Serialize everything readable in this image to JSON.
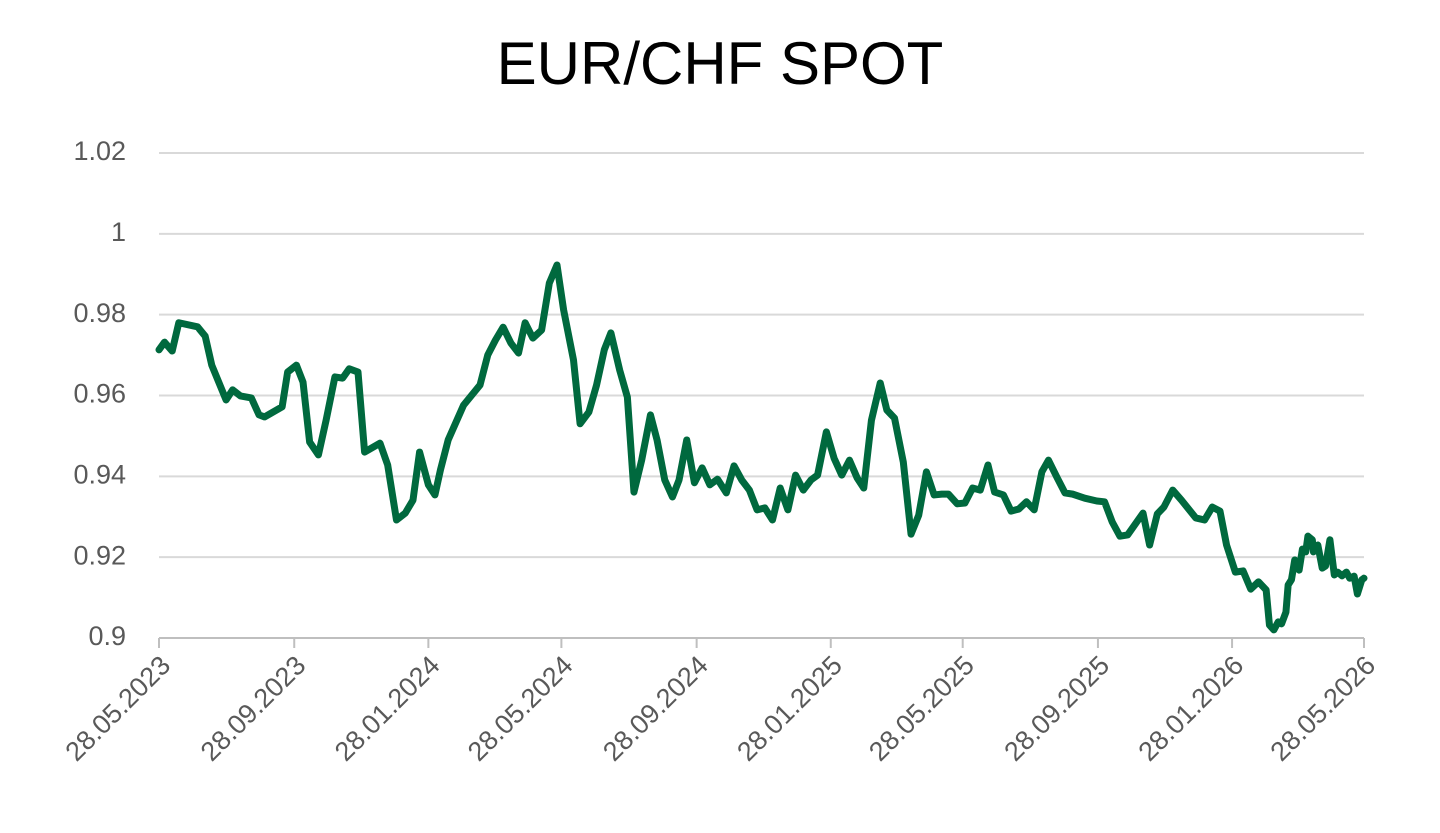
{
  "chart_data": {
    "type": "line",
    "title": "EUR/CHF SPOT",
    "x": [
      "28.05.2023",
      "02.06.2023",
      "09.06.2023",
      "15.06.2023",
      "02.07.2023",
      "09.07.2023",
      "15.07.2023",
      "28.07.2023",
      "03.08.2023",
      "10.08.2023",
      "20.08.2023",
      "27.08.2023",
      "01.09.2023",
      "17.09.2023",
      "22.09.2023",
      "30.09.2023",
      "06.10.2023",
      "12.10.2023",
      "20.10.2023",
      "27.10.2023",
      "04.11.2023",
      "11.11.2023",
      "17.11.2023",
      "25.11.2023",
      "01.12.2023",
      "15.12.2023",
      "22.12.2023",
      "30.12.2023",
      "07.01.2024",
      "14.01.2024",
      "20.01.2024",
      "28.01.2024",
      "03.02.2024",
      "08.02.2024",
      "15.02.2024",
      "29.02.2024",
      "15.03.2024",
      "22.03.2024",
      "29.03.2024",
      "05.04.2024",
      "12.04.2024",
      "19.04.2024",
      "25.04.2024",
      "02.05.2024",
      "10.05.2024",
      "17.05.2024",
      "24.05.2024",
      "30.05.2024",
      "08.06.2024",
      "14.06.2024",
      "22.06.2024",
      "29.06.2024",
      "06.07.2024",
      "12.07.2024",
      "20.07.2024",
      "27.07.2024",
      "02.08.2024",
      "09.08.2024",
      "17.08.2024",
      "23.08.2024",
      "30.08.2024",
      "06.09.2024",
      "12.09.2024",
      "19.09.2024",
      "26.09.2024",
      "03.10.2024",
      "10.10.2024",
      "17.10.2024",
      "25.10.2024",
      "01.11.2024",
      "08.11.2024",
      "15.11.2024",
      "22.11.2024",
      "29.11.2024",
      "06.12.2024",
      "13.12.2024",
      "20.12.2024",
      "27.12.2024",
      "03.01.2025",
      "10.01.2025",
      "16.01.2025",
      "24.01.2025",
      "31.01.2025",
      "07.02.2025",
      "14.02.2025",
      "21.02.2025",
      "27.02.2025",
      "06.03.2025",
      "14.03.2025",
      "20.03.2025",
      "27.03.2025",
      "04.04.2025",
      "11.04.2025",
      "18.04.2025",
      "25.04.2025",
      "02.05.2025",
      "09.05.2025",
      "15.05.2025",
      "23.05.2025",
      "30.05.2025",
      "06.06.2025",
      "13.06.2025",
      "20.06.2025",
      "26.06.2025",
      "04.07.2025",
      "11.07.2025",
      "18.07.2025",
      "25.07.2025",
      "01.08.2025",
      "08.08.2025",
      "14.08.2025",
      "22.08.2025",
      "29.08.2025",
      "05.09.2025",
      "16.09.2025",
      "27.09.2025",
      "04.10.2025",
      "11.10.2025",
      "18.10.2025",
      "25.10.2025",
      "08.11.2025",
      "14.11.2025",
      "21.11.2025",
      "27.11.2025",
      "05.12.2025",
      "13.12.2025",
      "26.12.2025",
      "03.01.2026",
      "10.01.2026",
      "17.01.2026",
      "23.01.2026",
      "31.01.2026",
      "07.02.2026",
      "14.02.2026",
      "21.02.2026",
      "28.02.2026",
      "03.03.2026",
      "07.03.2026",
      "11.03.2026",
      "14.03.2026",
      "18.03.2026",
      "20.03.2026",
      "23.03.2026",
      "26.03.2026",
      "30.03.2026",
      "02.04.2026",
      "05.04.2026",
      "07.04.2026",
      "11.04.2026",
      "12.04.2026",
      "16.04.2026",
      "20.04.2026",
      "23.04.2026",
      "27.04.2026",
      "01.05.2026",
      "04.05.2026",
      "08.05.2026",
      "12.05.2026",
      "15.05.2026",
      "19.05.2026",
      "22.05.2026",
      "26.05.2026",
      "28.05.2026"
    ],
    "series": [
      {
        "name": "EUR/CHF",
        "color": "#00693e",
        "values": [
          0.9713,
          0.9732,
          0.971,
          0.978,
          0.977,
          0.9747,
          0.9675,
          0.9589,
          0.9614,
          0.9599,
          0.9594,
          0.9552,
          0.9547,
          0.9572,
          0.9658,
          0.9675,
          0.9633,
          0.9485,
          0.9453,
          0.9539,
          0.9646,
          0.9643,
          0.9666,
          0.9658,
          0.946,
          0.9482,
          0.9428,
          0.9292,
          0.9309,
          0.9341,
          0.946,
          0.9379,
          0.9354,
          0.9416,
          0.949,
          0.9576,
          0.9626,
          0.97,
          0.9737,
          0.9769,
          0.973,
          0.9705,
          0.978,
          0.9742,
          0.9762,
          0.9878,
          0.9923,
          0.9812,
          0.9688,
          0.953,
          0.9559,
          0.9626,
          0.9713,
          0.9755,
          0.9663,
          0.9596,
          0.9361,
          0.944,
          0.9552,
          0.949,
          0.9391,
          0.9349,
          0.9391,
          0.949,
          0.9384,
          0.9421,
          0.9379,
          0.9393,
          0.9359,
          0.9426,
          0.9391,
          0.9366,
          0.9317,
          0.9322,
          0.9292,
          0.9371,
          0.9317,
          0.9403,
          0.9366,
          0.9391,
          0.9403,
          0.951,
          0.9445,
          0.9403,
          0.944,
          0.9396,
          0.9371,
          0.9539,
          0.9631,
          0.9564,
          0.9544,
          0.9435,
          0.9257,
          0.9304,
          0.9411,
          0.9354,
          0.9356,
          0.9356,
          0.9332,
          0.9334,
          0.9371,
          0.9366,
          0.9428,
          0.9361,
          0.9354,
          0.9314,
          0.9319,
          0.9337,
          0.9317,
          0.9411,
          0.944,
          0.9396,
          0.9359,
          0.9356,
          0.9346,
          0.9339,
          0.9337,
          0.9287,
          0.9252,
          0.9255,
          0.9309,
          0.923,
          0.9307,
          0.9324,
          0.9366,
          0.9341,
          0.9297,
          0.9292,
          0.9324,
          0.9314,
          0.923,
          0.9163,
          0.9166,
          0.9121,
          0.9139,
          0.9119,
          0.9032,
          0.902,
          0.904,
          0.9035,
          0.9064,
          0.9131,
          0.9144,
          0.9193,
          0.9168,
          0.922,
          0.9213,
          0.9252,
          0.9243,
          0.9213,
          0.923,
          0.9173,
          0.9178,
          0.9243,
          0.9156,
          0.9163,
          0.9154,
          0.9163,
          0.9148,
          0.9153,
          0.9109,
          0.9144,
          0.9148
        ]
      }
    ],
    "xlim": [
      "28.05.2023",
      "28.05.2026"
    ],
    "xticks": [
      "28.05.2023",
      "28.09.2023",
      "28.01.2024",
      "28.05.2024",
      "28.09.2024",
      "28.01.2025",
      "28.05.2025",
      "28.09.2025",
      "28.01.2026",
      "28.05.2026"
    ],
    "ylim": [
      0.9,
      1.02
    ],
    "yticks": [
      0.9,
      0.92,
      0.94,
      0.96,
      0.98,
      1,
      1.02
    ],
    "grid": true
  }
}
